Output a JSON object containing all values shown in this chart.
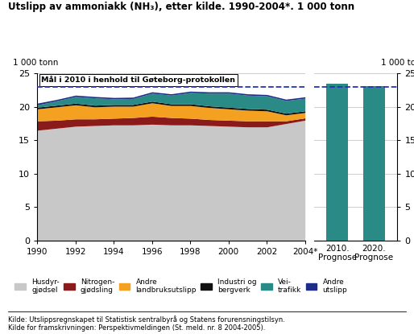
{
  "title": "Utslipp av ammoniakk (NH₃), etter kilde. 1990-2004*. 1 000 tonn",
  "ylabel_left": "1 000 tonn",
  "ylabel_right": "1 000 tonn",
  "years": [
    1990,
    1991,
    1992,
    1993,
    1994,
    1995,
    1996,
    1997,
    1998,
    1999,
    2000,
    2001,
    2002,
    2003,
    2004
  ],
  "husdyr": [
    16.5,
    16.8,
    17.1,
    17.2,
    17.3,
    17.3,
    17.4,
    17.3,
    17.3,
    17.2,
    17.1,
    17.0,
    17.0,
    17.5,
    18.0
  ],
  "nitrogen": [
    1.4,
    1.2,
    1.1,
    1.0,
    1.0,
    1.1,
    1.2,
    1.1,
    1.0,
    0.9,
    0.9,
    0.9,
    0.9,
    0.4,
    0.35
  ],
  "andre_land": [
    1.8,
    2.0,
    2.1,
    1.8,
    1.8,
    1.7,
    2.0,
    1.8,
    1.9,
    1.8,
    1.7,
    1.6,
    1.5,
    0.9,
    0.8
  ],
  "industri": [
    0.25,
    0.25,
    0.25,
    0.25,
    0.25,
    0.25,
    0.25,
    0.25,
    0.25,
    0.25,
    0.25,
    0.25,
    0.25,
    0.25,
    0.25
  ],
  "vei": [
    0.35,
    0.65,
    1.0,
    1.1,
    0.85,
    0.9,
    1.2,
    1.3,
    1.7,
    1.9,
    2.1,
    2.0,
    2.0,
    1.9,
    1.9
  ],
  "andre_utslipp": [
    0.25,
    0.2,
    0.2,
    0.2,
    0.2,
    0.2,
    0.2,
    0.2,
    0.2,
    0.2,
    0.2,
    0.2,
    0.2,
    0.2,
    0.2
  ],
  "color_husdyr": "#c8c8c8",
  "color_nitrogen": "#8b1a1a",
  "color_andre_land": "#f4a020",
  "color_industri": "#111111",
  "color_vei": "#2a8a85",
  "color_andre_utslipp": "#1e2d8a",
  "bar_2010": 23.5,
  "bar_2020": 23.1,
  "bar_color": "#2a8a85",
  "dashed_line": 23.0,
  "dashed_color": "#2233bb",
  "ylim": [
    0,
    25
  ],
  "yticks": [
    0,
    5,
    10,
    15,
    20,
    25
  ],
  "annotation_box": "Mål i 2010 i henhold til Gøteborg-protokollen",
  "xlabel_2010": "2010.\nPrognose",
  "xlabel_2020": "2020.\nPrognose",
  "source1": "Kilde: Utslippsregnskapet til Statistisk sentralbyrå og Statens forurensningstilsyn.",
  "source2": "Kilde for framskrivningen: Perspektivmeldingen (St. meld. nr. 8 2004-2005).",
  "legend_labels": [
    "Husdyr-\ngjødsel",
    "Nitrogen-\ngjødsling",
    "Andre\nlandbruksutslipp",
    "Industri og\nbergverk",
    "Vei-\ntrafikk",
    "Andre\nutslipp"
  ]
}
